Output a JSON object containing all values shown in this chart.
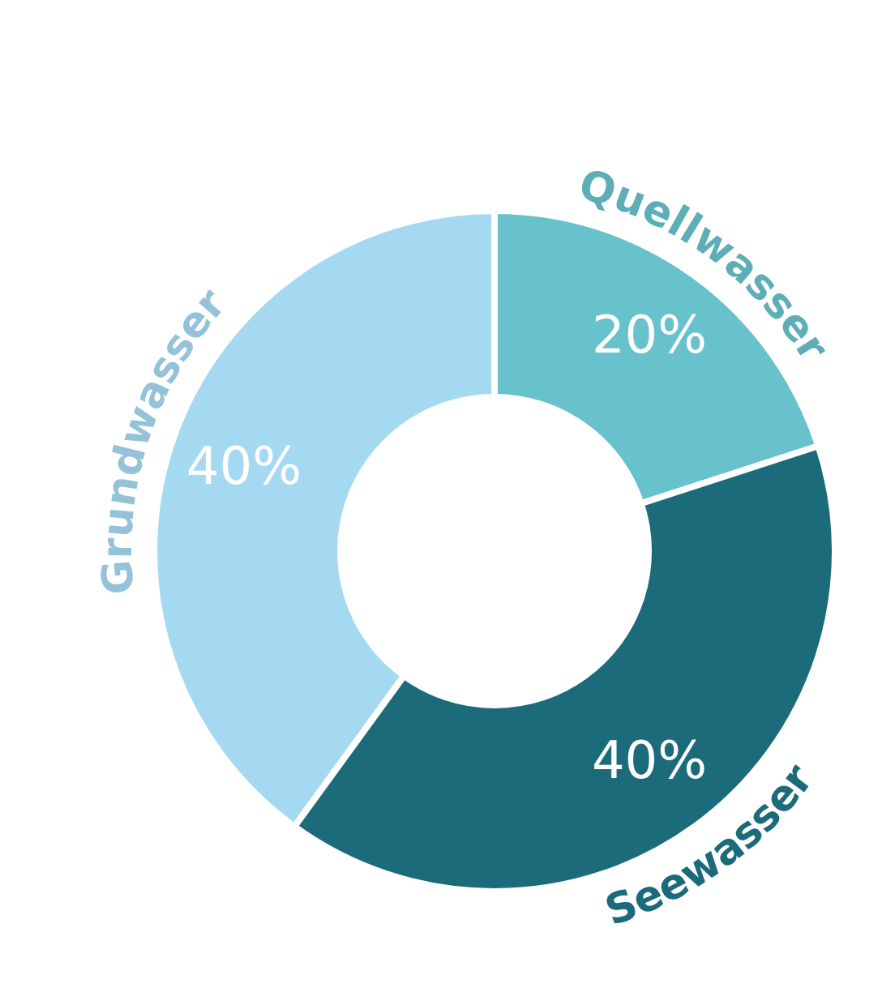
{
  "chart_data": {
    "type": "donut",
    "categories": [
      "Quellwasser",
      "Seewasser",
      "Grundwasser"
    ],
    "values": [
      20,
      40,
      40
    ],
    "colors": [
      "#67c2cc",
      "#1b6b7b",
      "#a5d9f2"
    ],
    "value_labels": [
      "20%",
      "40%",
      "40%"
    ]
  }
}
